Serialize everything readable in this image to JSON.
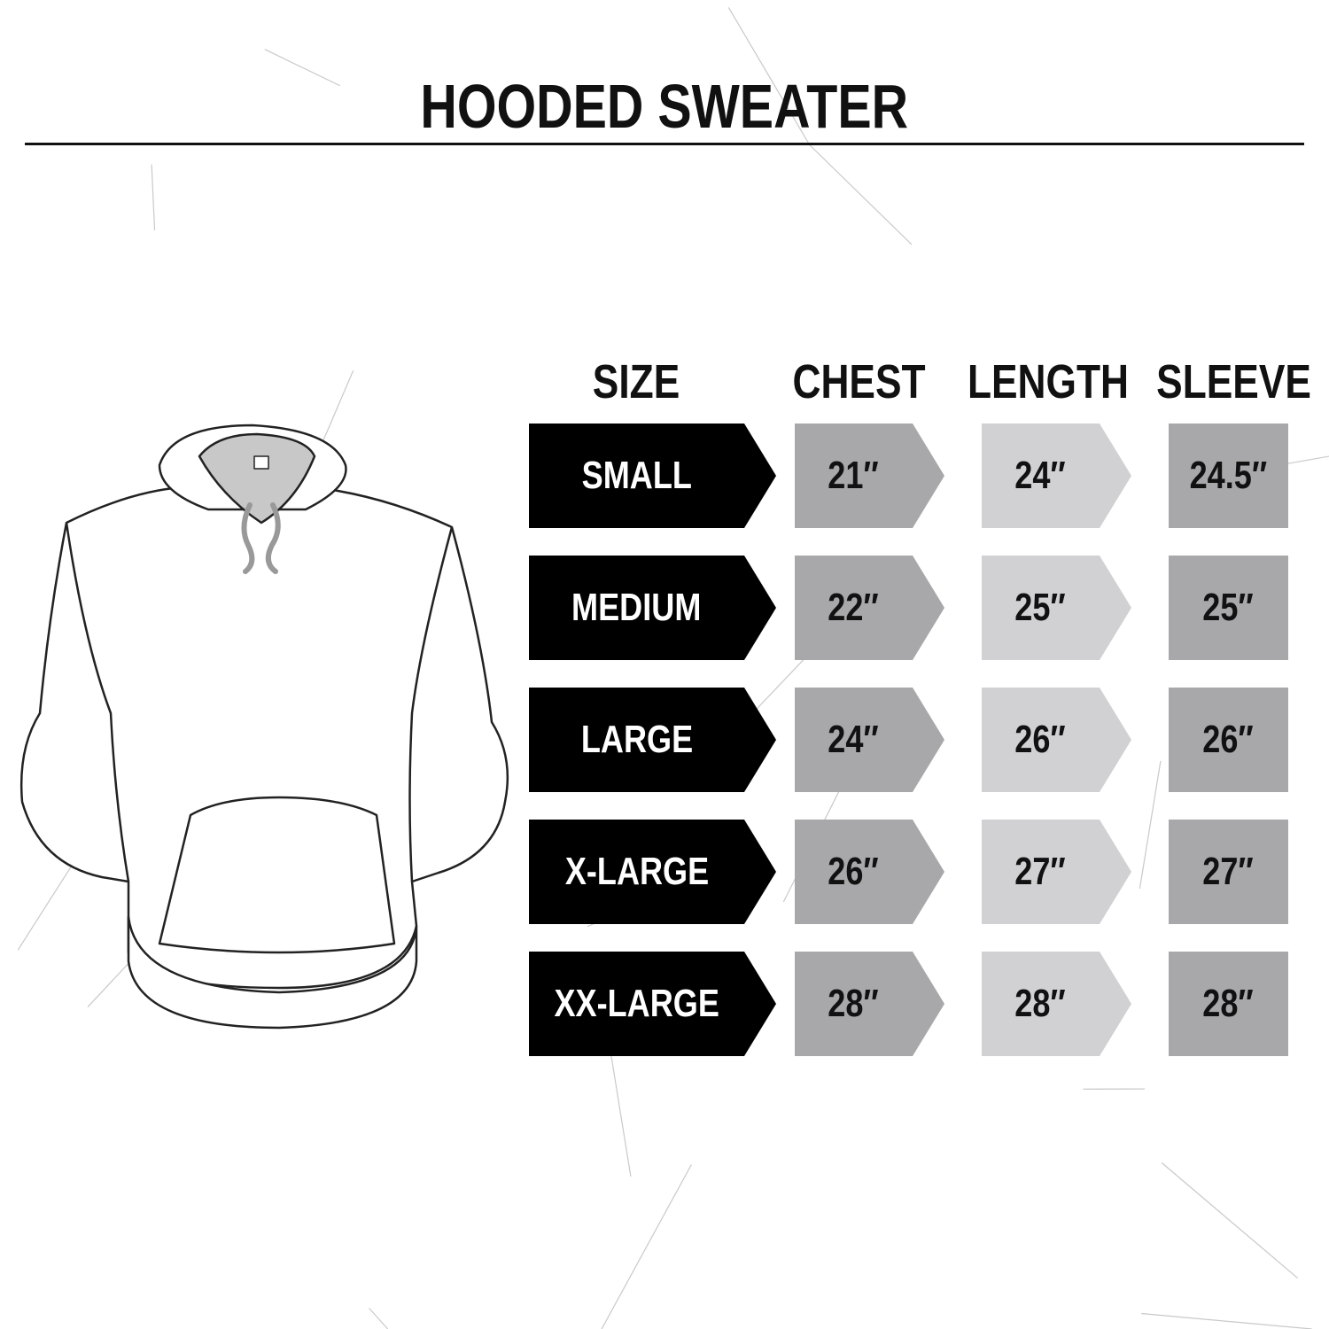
{
  "title": "HOODED SWEATER",
  "colors": {
    "size_box": "#000000",
    "chest_box": "#a8a8ab",
    "length_box": "#d1d1d3",
    "sleeve_box": "#a8a8ab"
  },
  "illustration": "hoodie-outline",
  "table": {
    "headers": [
      "SIZE",
      "CHEST",
      "LENGTH",
      "SLEEVE"
    ],
    "rows": [
      {
        "size": "SMALL",
        "chest": "21″",
        "length": "24″",
        "sleeve": "24.5″"
      },
      {
        "size": "MEDIUM",
        "chest": "22″",
        "length": "25″",
        "sleeve": "25″"
      },
      {
        "size": "LARGE",
        "chest": "24″",
        "length": "26″",
        "sleeve": "26″"
      },
      {
        "size": "X-LARGE",
        "chest": "26″",
        "length": "27″",
        "sleeve": "27″"
      },
      {
        "size": "XX-LARGE",
        "chest": "28″",
        "length": "28″",
        "sleeve": "28″"
      }
    ]
  }
}
